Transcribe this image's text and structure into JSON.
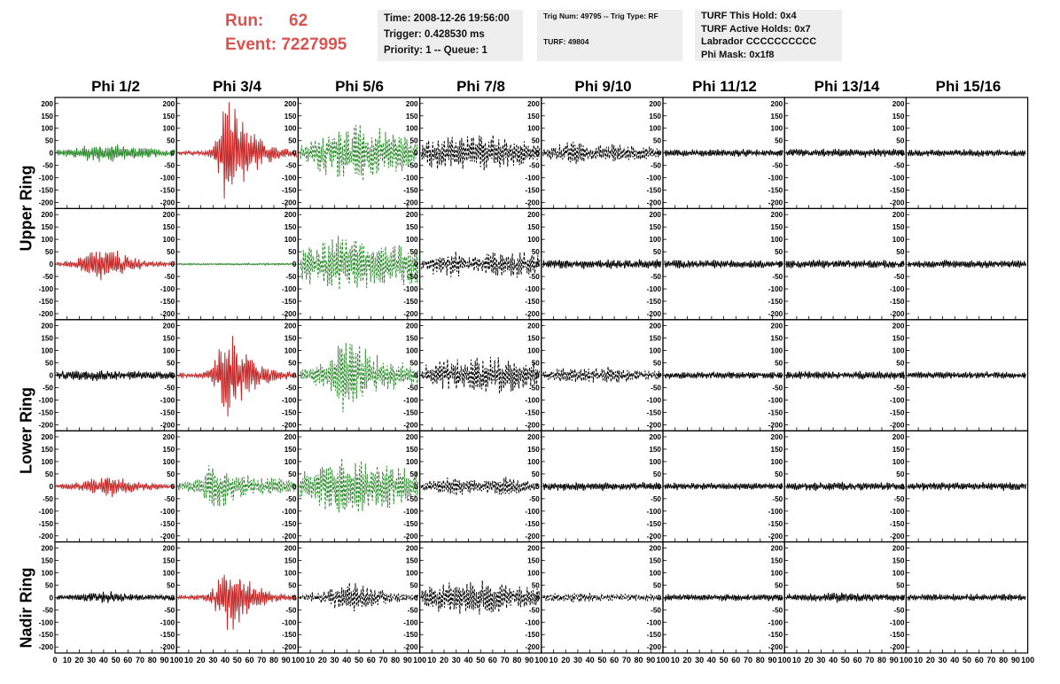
{
  "header": {
    "run_label": "Run:",
    "run_value": "62",
    "event_label": "Event:",
    "event_value": "7227995"
  },
  "info_time": {
    "time": "Time: 2008-12-26 19:56:00",
    "trigger": "Trigger: 0.428530 ms",
    "priority": "Priority: 1 -- Queue: 1"
  },
  "info_trig": {
    "trig": "Trig Num: 49795 -- Trig Type: RF",
    "turf": "TURF: 49804"
  },
  "info_turf": {
    "hold": "TURF This Hold: 0x4",
    "active": "TURF Active Holds: 0x7",
    "labrador": "Labrador CCCCCCCCCC",
    "phimask": "Phi Mask: 0x1f8"
  },
  "columns": [
    "Phi 1/2",
    "Phi 3/4",
    "Phi 5/6",
    "Phi 7/8",
    "Phi 9/10",
    "Phi 11/12",
    "Phi 13/14",
    "Phi 15/16"
  ],
  "rows": [
    "Upper Ring",
    "Upper Ring",
    "Lower Ring",
    "Lower Ring",
    "Nadir Ring"
  ],
  "y_tick_labels": [
    "200",
    "150",
    "100",
    "50",
    "0",
    "-50",
    "-100",
    "-150",
    "-200"
  ],
  "x_tick_labels": [
    "0",
    "10",
    "20",
    "30",
    "40",
    "50",
    "60",
    "70",
    "80",
    "90",
    "100"
  ],
  "colors": {
    "red": "#c62828",
    "green": "#2e8b2e",
    "black": "#000000",
    "title_red": "#d9534f",
    "box_grey": "#eeeeee"
  },
  "chart_data": {
    "type": "line",
    "xlabel": "",
    "ylabel": "",
    "xlim": [
      0,
      100
    ],
    "ylim": [
      -200,
      200
    ],
    "panels": [
      [
        {
          "color": "green",
          "style": "solid",
          "amp": [
            12,
            14,
            18,
            22,
            28,
            32,
            34,
            36,
            32,
            28,
            24,
            20,
            16,
            14,
            12,
            12
          ],
          "noise": 4
        },
        {
          "color": "red",
          "style": "solid",
          "amp": [
            8,
            8,
            8,
            10,
            14,
            60,
            200,
            170,
            120,
            90,
            60,
            40,
            30,
            22,
            16,
            14
          ],
          "noise": 5
        },
        {
          "color": "green",
          "style": "dashed",
          "amp": [
            30,
            40,
            60,
            70,
            80,
            90,
            100,
            120,
            110,
            100,
            90,
            80,
            70,
            60,
            50,
            45
          ],
          "noise": 8
        },
        {
          "color": "black",
          "style": "dashed",
          "amp": [
            40,
            50,
            60,
            60,
            60,
            55,
            60,
            70,
            65,
            60,
            60,
            55,
            50,
            50,
            45,
            40
          ],
          "noise": 8
        },
        {
          "color": "black",
          "style": "dashed",
          "amp": [
            20,
            25,
            30,
            35,
            40,
            35,
            30,
            30,
            35,
            35,
            30,
            28,
            26,
            24,
            22,
            20
          ],
          "noise": 6
        },
        {
          "color": "black",
          "style": "solid",
          "amp": [
            12,
            12,
            12,
            12,
            12,
            12,
            12,
            12,
            12,
            12,
            12,
            12,
            12,
            12,
            12,
            12
          ],
          "noise": 5
        },
        {
          "color": "black",
          "style": "solid",
          "amp": [
            14,
            14,
            14,
            14,
            14,
            14,
            14,
            14,
            14,
            14,
            14,
            14,
            14,
            14,
            14,
            14
          ],
          "noise": 6
        },
        {
          "color": "black",
          "style": "solid",
          "amp": [
            12,
            12,
            12,
            12,
            12,
            12,
            12,
            12,
            12,
            12,
            12,
            12,
            12,
            12,
            12,
            12
          ],
          "noise": 5
        }
      ],
      [
        {
          "color": "red",
          "style": "solid",
          "amp": [
            8,
            10,
            14,
            22,
            40,
            60,
            60,
            50,
            42,
            30,
            22,
            16,
            12,
            10,
            8,
            8
          ],
          "noise": 4
        },
        {
          "color": "green",
          "style": "solid",
          "amp": [
            3,
            3,
            3,
            3,
            3,
            3,
            3,
            3,
            3,
            3,
            3,
            3,
            3,
            3,
            3,
            3
          ],
          "noise": 1
        },
        {
          "color": "green",
          "style": "dashed",
          "amp": [
            60,
            70,
            80,
            90,
            100,
            110,
            100,
            95,
            90,
            90,
            85,
            80,
            75,
            75,
            80,
            70
          ],
          "noise": 10
        },
        {
          "color": "black",
          "style": "dashed",
          "amp": [
            20,
            30,
            40,
            50,
            50,
            40,
            30,
            30,
            35,
            40,
            45,
            50,
            55,
            45,
            40,
            30
          ],
          "noise": 6
        },
        {
          "color": "black",
          "style": "solid",
          "amp": [
            16,
            16,
            16,
            16,
            16,
            16,
            16,
            16,
            16,
            16,
            16,
            16,
            16,
            16,
            16,
            16
          ],
          "noise": 6
        },
        {
          "color": "black",
          "style": "solid",
          "amp": [
            14,
            14,
            14,
            14,
            14,
            14,
            14,
            14,
            14,
            14,
            14,
            14,
            14,
            14,
            14,
            14
          ],
          "noise": 5
        },
        {
          "color": "black",
          "style": "solid",
          "amp": [
            14,
            14,
            14,
            14,
            14,
            14,
            14,
            14,
            14,
            14,
            14,
            14,
            14,
            14,
            14,
            14
          ],
          "noise": 5
        },
        {
          "color": "black",
          "style": "solid",
          "amp": [
            14,
            14,
            14,
            14,
            14,
            14,
            14,
            14,
            14,
            14,
            14,
            14,
            14,
            14,
            14,
            14
          ],
          "noise": 5
        }
      ],
      [
        {
          "color": "black",
          "style": "solid",
          "amp": [
            14,
            16,
            16,
            18,
            20,
            20,
            18,
            16,
            16,
            14,
            14,
            14,
            14,
            14,
            14,
            14
          ],
          "noise": 5
        },
        {
          "color": "red",
          "style": "solid",
          "amp": [
            8,
            8,
            8,
            10,
            20,
            80,
            160,
            140,
            100,
            70,
            50,
            35,
            25,
            18,
            14,
            12
          ],
          "noise": 5
        },
        {
          "color": "green",
          "style": "dashed",
          "amp": [
            20,
            30,
            40,
            50,
            60,
            120,
            140,
            130,
            100,
            80,
            70,
            60,
            50,
            45,
            40,
            35
          ],
          "noise": 8
        },
        {
          "color": "black",
          "style": "dashed",
          "amp": [
            30,
            40,
            50,
            60,
            60,
            55,
            50,
            60,
            70,
            70,
            65,
            60,
            55,
            50,
            45,
            40
          ],
          "noise": 8
        },
        {
          "color": "black",
          "style": "dashed",
          "amp": [
            15,
            20,
            25,
            30,
            30,
            28,
            25,
            28,
            30,
            28,
            25,
            22,
            20,
            18,
            16,
            15
          ],
          "noise": 5
        },
        {
          "color": "black",
          "style": "solid",
          "amp": [
            12,
            12,
            12,
            12,
            12,
            12,
            12,
            12,
            12,
            12,
            12,
            12,
            12,
            12,
            12,
            12
          ],
          "noise": 5
        },
        {
          "color": "black",
          "style": "solid",
          "amp": [
            14,
            14,
            14,
            14,
            14,
            14,
            14,
            14,
            14,
            14,
            14,
            14,
            14,
            14,
            14,
            14
          ],
          "noise": 5
        },
        {
          "color": "black",
          "style": "solid",
          "amp": [
            12,
            12,
            12,
            12,
            12,
            12,
            12,
            12,
            12,
            12,
            12,
            12,
            12,
            12,
            12,
            12
          ],
          "noise": 4
        }
      ],
      [
        {
          "color": "red",
          "style": "solid",
          "amp": [
            8,
            10,
            14,
            18,
            24,
            30,
            38,
            42,
            36,
            28,
            20,
            16,
            12,
            10,
            8,
            8
          ],
          "noise": 4
        },
        {
          "color": "green",
          "style": "dashed",
          "amp": [
            20,
            20,
            24,
            40,
            100,
            90,
            70,
            55,
            45,
            40,
            35,
            30,
            30,
            28,
            25,
            22
          ],
          "noise": 6
        },
        {
          "color": "green",
          "style": "dashed",
          "amp": [
            50,
            60,
            70,
            80,
            90,
            100,
            100,
            95,
            90,
            85,
            80,
            75,
            70,
            65,
            60,
            55
          ],
          "noise": 8
        },
        {
          "color": "black",
          "style": "dashed",
          "amp": [
            15,
            20,
            25,
            30,
            35,
            35,
            30,
            25,
            25,
            30,
            35,
            35,
            30,
            25,
            20,
            18
          ],
          "noise": 5
        },
        {
          "color": "black",
          "style": "solid",
          "amp": [
            14,
            14,
            14,
            14,
            14,
            14,
            14,
            14,
            14,
            14,
            14,
            14,
            14,
            14,
            14,
            14
          ],
          "noise": 5
        },
        {
          "color": "black",
          "style": "solid",
          "amp": [
            12,
            12,
            12,
            12,
            12,
            12,
            12,
            12,
            12,
            12,
            12,
            12,
            12,
            12,
            12,
            12
          ],
          "noise": 4
        },
        {
          "color": "black",
          "style": "solid",
          "amp": [
            14,
            14,
            14,
            14,
            14,
            14,
            14,
            14,
            14,
            14,
            14,
            14,
            14,
            14,
            14,
            14
          ],
          "noise": 5
        },
        {
          "color": "black",
          "style": "solid",
          "amp": [
            14,
            14,
            14,
            14,
            14,
            14,
            14,
            14,
            14,
            14,
            14,
            14,
            14,
            14,
            14,
            14
          ],
          "noise": 5
        }
      ],
      [
        {
          "color": "black",
          "style": "solid",
          "amp": [
            10,
            10,
            12,
            12,
            14,
            18,
            24,
            22,
            18,
            14,
            12,
            10,
            10,
            10,
            10,
            10
          ],
          "noise": 4
        },
        {
          "color": "red",
          "style": "solid",
          "amp": [
            8,
            8,
            8,
            10,
            20,
            60,
            120,
            110,
            80,
            60,
            40,
            28,
            20,
            16,
            12,
            10
          ],
          "noise": 5
        },
        {
          "color": "black",
          "style": "dashed",
          "amp": [
            10,
            14,
            18,
            24,
            30,
            50,
            60,
            55,
            45,
            35,
            28,
            22,
            18,
            14,
            12,
            10
          ],
          "noise": 5
        },
        {
          "color": "black",
          "style": "dashed",
          "amp": [
            30,
            40,
            50,
            55,
            60,
            60,
            60,
            60,
            60,
            60,
            55,
            50,
            45,
            40,
            35,
            30
          ],
          "noise": 8
        },
        {
          "color": "black",
          "style": "dashed",
          "amp": [
            12,
            14,
            16,
            16,
            18,
            18,
            16,
            16,
            14,
            14,
            14,
            12,
            12,
            12,
            12,
            12
          ],
          "noise": 4
        },
        {
          "color": "black",
          "style": "solid",
          "amp": [
            12,
            12,
            12,
            12,
            12,
            12,
            12,
            12,
            12,
            12,
            12,
            12,
            12,
            12,
            12,
            12
          ],
          "noise": 4
        },
        {
          "color": "black",
          "style": "solid",
          "amp": [
            12,
            12,
            12,
            14,
            14,
            14,
            18,
            20,
            18,
            14,
            12,
            12,
            12,
            12,
            12,
            12
          ],
          "noise": 4
        },
        {
          "color": "black",
          "style": "solid",
          "amp": [
            12,
            12,
            12,
            12,
            12,
            12,
            12,
            12,
            12,
            12,
            12,
            12,
            12,
            12,
            12,
            12
          ],
          "noise": 4
        }
      ]
    ]
  }
}
